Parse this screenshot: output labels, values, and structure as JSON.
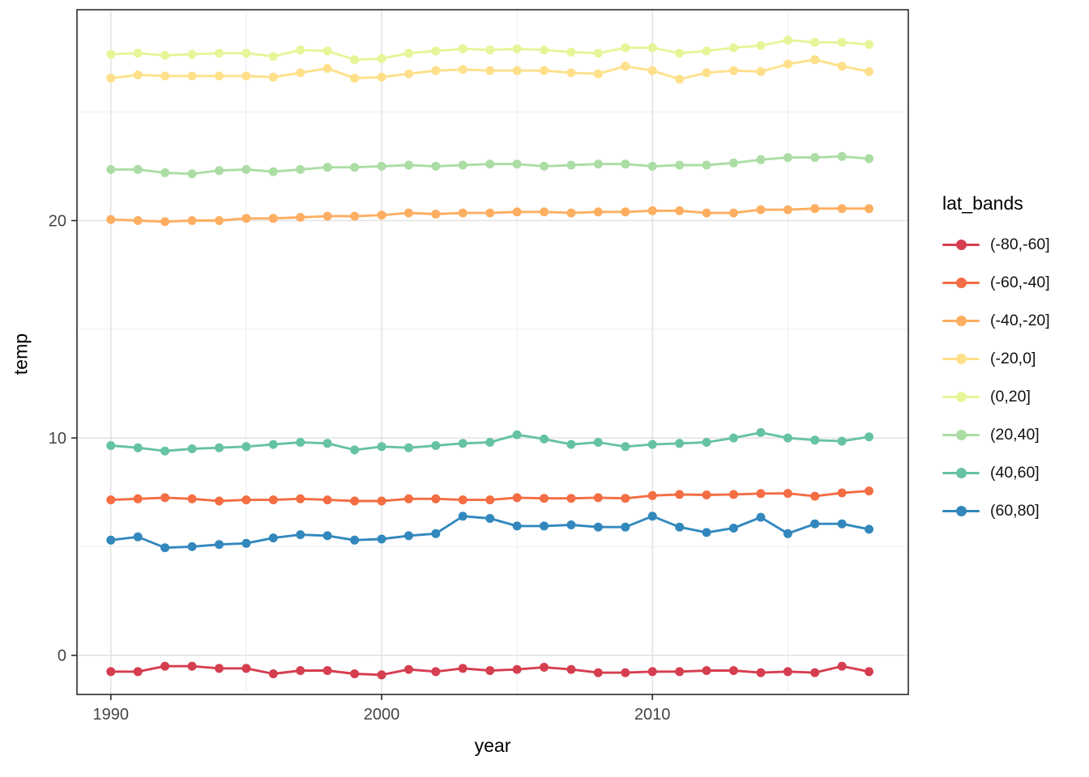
{
  "chart_data": {
    "type": "line",
    "title": "",
    "xlabel": "year",
    "ylabel": "temp",
    "legend_title": "lat_bands",
    "legend_position": "right",
    "grid": true,
    "x": [
      1990,
      1991,
      1992,
      1993,
      1994,
      1995,
      1996,
      1997,
      1998,
      1999,
      2000,
      2001,
      2002,
      2003,
      2004,
      2005,
      2006,
      2007,
      2008,
      2009,
      2010,
      2011,
      2012,
      2013,
      2014,
      2015,
      2016,
      2017,
      2018
    ],
    "xticks": [
      1990,
      2000,
      2010
    ],
    "yticks": [
      0,
      10,
      20
    ],
    "x_minor": [
      1995,
      2005,
      2015
    ],
    "y_minor": [
      5,
      15,
      25
    ],
    "xlim": [
      1988.75,
      2019.45
    ],
    "ylim": [
      -1.8,
      29.7
    ],
    "series": [
      {
        "name": "(-80,-60]",
        "color": "#d53e4f",
        "values": [
          -0.75,
          -0.75,
          -0.5,
          -0.5,
          -0.6,
          -0.6,
          -0.85,
          -0.7,
          -0.7,
          -0.85,
          -0.9,
          -0.65,
          -0.75,
          -0.6,
          -0.7,
          -0.65,
          -0.55,
          -0.65,
          -0.8,
          -0.8,
          -0.75,
          -0.75,
          -0.7,
          -0.7,
          -0.8,
          -0.75,
          -0.8,
          -0.5,
          -0.75
        ]
      },
      {
        "name": "(-60,-40]",
        "color": "#f46d43",
        "values": [
          7.15,
          7.2,
          7.25,
          7.2,
          7.1,
          7.15,
          7.15,
          7.2,
          7.15,
          7.1,
          7.1,
          7.2,
          7.2,
          7.15,
          7.15,
          7.25,
          7.22,
          7.22,
          7.25,
          7.22,
          7.35,
          7.4,
          7.38,
          7.4,
          7.44,
          7.45,
          7.32,
          7.47,
          7.56
        ]
      },
      {
        "name": "(-40,-20]",
        "color": "#fdae61",
        "values": [
          20.05,
          20.0,
          19.95,
          20.0,
          20.0,
          20.1,
          20.1,
          20.15,
          20.2,
          20.2,
          20.25,
          20.35,
          20.3,
          20.35,
          20.35,
          20.4,
          20.4,
          20.35,
          20.4,
          20.4,
          20.45,
          20.45,
          20.35,
          20.35,
          20.5,
          20.5,
          20.55,
          20.55,
          20.55
        ]
      },
      {
        "name": "(-20,0]",
        "color": "#fee08b",
        "values": [
          26.55,
          26.7,
          26.65,
          26.65,
          26.65,
          26.65,
          26.6,
          26.8,
          27.0,
          26.55,
          26.6,
          26.75,
          26.9,
          26.95,
          26.9,
          26.9,
          26.9,
          26.8,
          26.75,
          27.1,
          26.9,
          26.5,
          26.8,
          26.9,
          26.85,
          27.2,
          27.4,
          27.1,
          26.85
        ]
      },
      {
        "name": "(0,20]",
        "color": "#e6f598",
        "values": [
          27.65,
          27.7,
          27.6,
          27.65,
          27.7,
          27.7,
          27.55,
          27.85,
          27.8,
          27.4,
          27.45,
          27.7,
          27.8,
          27.9,
          27.85,
          27.9,
          27.85,
          27.75,
          27.7,
          27.95,
          27.95,
          27.7,
          27.8,
          27.95,
          28.05,
          28.3,
          28.2,
          28.2,
          28.1
        ]
      },
      {
        "name": "(20,40]",
        "color": "#abdda4",
        "values": [
          22.35,
          22.35,
          22.2,
          22.15,
          22.3,
          22.35,
          22.25,
          22.35,
          22.45,
          22.45,
          22.5,
          22.55,
          22.5,
          22.55,
          22.6,
          22.6,
          22.5,
          22.55,
          22.6,
          22.6,
          22.5,
          22.55,
          22.55,
          22.65,
          22.8,
          22.9,
          22.9,
          22.95,
          22.85
        ]
      },
      {
        "name": "(40,60]",
        "color": "#66c2a5",
        "values": [
          9.65,
          9.55,
          9.4,
          9.5,
          9.55,
          9.6,
          9.7,
          9.8,
          9.75,
          9.45,
          9.6,
          9.55,
          9.65,
          9.75,
          9.8,
          10.15,
          9.95,
          9.7,
          9.8,
          9.6,
          9.7,
          9.75,
          9.8,
          10.0,
          10.25,
          10.0,
          9.9,
          9.85,
          10.05
        ]
      },
      {
        "name": "(60,80]",
        "color": "#3288bd",
        "values": [
          5.3,
          5.45,
          4.95,
          5.0,
          5.1,
          5.15,
          5.4,
          5.55,
          5.5,
          5.3,
          5.35,
          5.5,
          5.6,
          6.4,
          6.3,
          5.95,
          5.95,
          6.0,
          5.9,
          5.9,
          6.4,
          5.9,
          5.65,
          5.85,
          6.35,
          5.6,
          6.05,
          6.05,
          5.8
        ]
      }
    ]
  },
  "style_colors": {
    "grid_major": "#e2e2e2",
    "grid_minor": "#ededed",
    "panel_border": "#2b2b2b",
    "tick": "#2b2b2b",
    "tick_label": "#454545"
  }
}
